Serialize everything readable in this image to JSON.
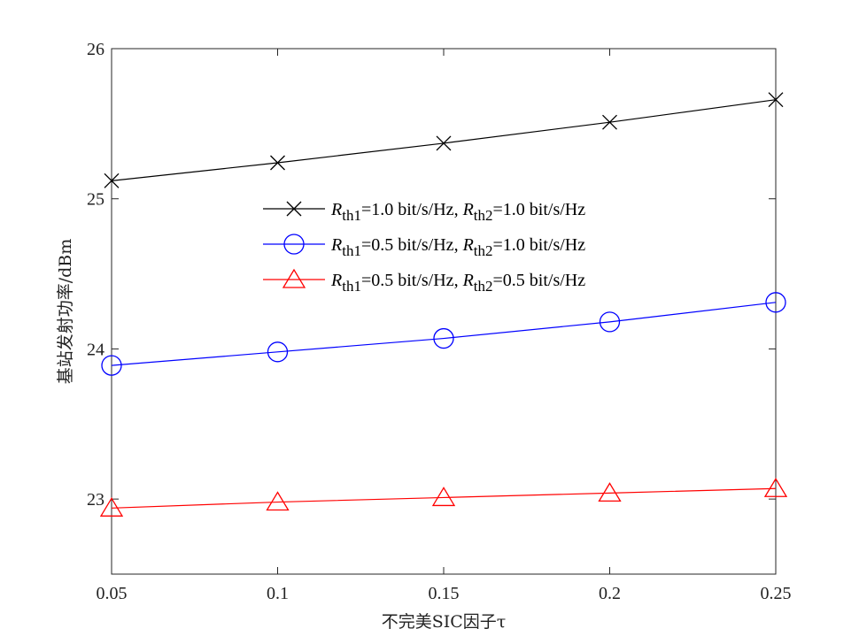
{
  "chart_data": {
    "type": "line",
    "xlabel": "不完美SIC因子τ",
    "ylabel": "基站发射功率/dBm",
    "xlim": [
      0.05,
      0.25
    ],
    "ylim": [
      22.5,
      26
    ],
    "xticks": [
      "0.05",
      "0.1",
      "0.15",
      "0.2",
      "0.25"
    ],
    "yticks": [
      "23",
      "24",
      "25",
      "26"
    ],
    "grid": false,
    "legend_position": "center",
    "x": [
      0.05,
      0.1,
      0.15,
      0.2,
      0.25
    ],
    "series": [
      {
        "name": "R_th1=1.0 bit/s/Hz, R_th2=1.0 bit/s/Hz",
        "legend": {
          "r1": "1.0",
          "r2": "1.0",
          "unit": "bit/s/Hz"
        },
        "values": [
          25.12,
          25.24,
          25.37,
          25.51,
          25.66
        ],
        "color": "#000000",
        "marker": "x"
      },
      {
        "name": "R_th1=0.5 bit/s/Hz, R_th2=1.0 bit/s/Hz",
        "legend": {
          "r1": "0.5",
          "r2": "1.0",
          "unit": "bit/s/Hz"
        },
        "values": [
          23.89,
          23.98,
          24.07,
          24.18,
          24.31
        ],
        "color": "#0000ff",
        "marker": "circle"
      },
      {
        "name": "R_th1=0.5 bit/s/Hz, R_th2=0.5 bit/s/Hz",
        "legend": {
          "r1": "0.5",
          "r2": "0.5",
          "unit": "bit/s/Hz"
        },
        "values": [
          22.94,
          22.98,
          23.01,
          23.04,
          23.07
        ],
        "color": "#ff0000",
        "marker": "triangle"
      }
    ]
  }
}
